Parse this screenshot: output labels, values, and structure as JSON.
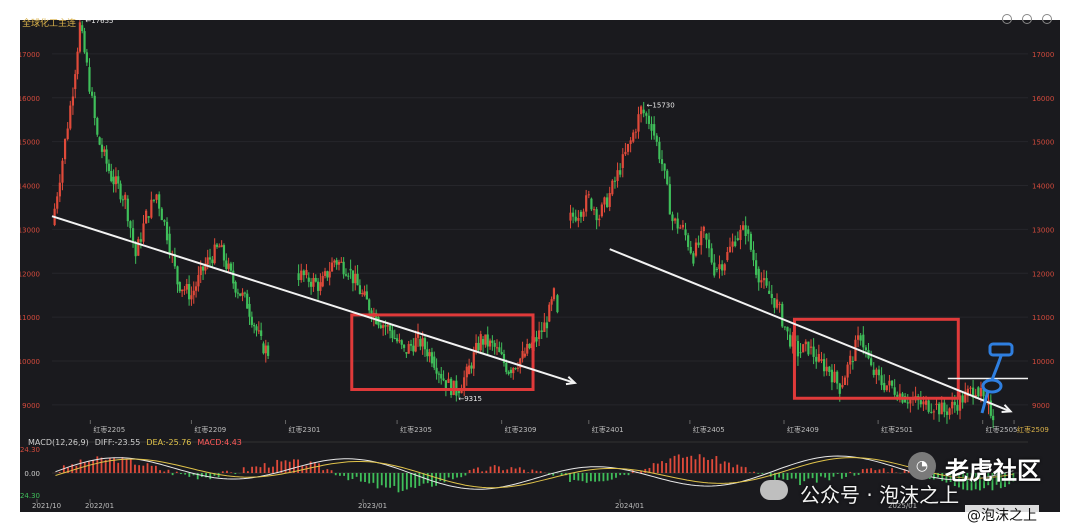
{
  "window": {
    "title": "全球化工主连"
  },
  "chart_data": {
    "type": "candlestick",
    "title": "全球化工主连",
    "y_ticks": [
      9000,
      10000,
      11000,
      12000,
      13000,
      14000,
      15000,
      16000,
      17000
    ],
    "ylim": [
      8700,
      17500
    ],
    "x_month_labels": [
      "红枣2205",
      "红枣2209",
      "红枣2301",
      "红枣2305",
      "红枣2309",
      "红枣2401",
      "红枣2405",
      "红枣2409",
      "红枣2501",
      "红枣2505",
      "红枣2509"
    ],
    "x_year_labels": [
      "2021/10",
      "2022/01",
      "2023/01",
      "2024/01",
      "2025/01"
    ],
    "annotations": [
      {
        "text": "←17655",
        "value": 17655
      },
      {
        "text": "←15730",
        "value": 15730
      },
      {
        "text": "←9315",
        "value": 9315
      }
    ],
    "segments": [
      {
        "name": "period-1",
        "points": [
          [
            0,
            13100
          ],
          [
            3,
            14600
          ],
          [
            6,
            16200
          ],
          [
            8,
            17655
          ],
          [
            10,
            16700
          ],
          [
            13,
            15100
          ],
          [
            17,
            14200
          ],
          [
            21,
            13700
          ],
          [
            24,
            12400
          ],
          [
            27,
            13300
          ],
          [
            30,
            13800
          ],
          [
            33,
            12900
          ],
          [
            36,
            11800
          ],
          [
            40,
            11500
          ],
          [
            44,
            12200
          ],
          [
            48,
            12600
          ],
          [
            52,
            11800
          ],
          [
            56,
            11300
          ],
          [
            60,
            10400
          ],
          [
            62,
            10200
          ]
        ]
      },
      {
        "name": "period-2",
        "points": [
          [
            70,
            12000
          ],
          [
            73,
            11900
          ],
          [
            77,
            11700
          ],
          [
            81,
            12300
          ],
          [
            85,
            12100
          ],
          [
            89,
            11500
          ],
          [
            93,
            11000
          ],
          [
            97,
            10700
          ],
          [
            101,
            10200
          ],
          [
            105,
            10500
          ],
          [
            109,
            10100
          ],
          [
            113,
            9500
          ],
          [
            116,
            9315
          ],
          [
            119,
            9700
          ],
          [
            123,
            10500
          ],
          [
            127,
            10300
          ],
          [
            131,
            9800
          ],
          [
            135,
            10100
          ],
          [
            139,
            10500
          ],
          [
            142,
            10900
          ],
          [
            144,
            11500
          ],
          [
            145,
            11000
          ]
        ]
      },
      {
        "name": "period-3",
        "points": [
          [
            148,
            13200
          ],
          [
            151,
            13400
          ],
          [
            154,
            13700
          ],
          [
            157,
            13300
          ],
          [
            160,
            13800
          ],
          [
            163,
            14400
          ],
          [
            166,
            15000
          ],
          [
            169,
            15730
          ],
          [
            172,
            15400
          ],
          [
            175,
            14500
          ],
          [
            178,
            13200
          ],
          [
            181,
            13000
          ],
          [
            184,
            12400
          ],
          [
            187,
            12900
          ],
          [
            190,
            12100
          ],
          [
            193,
            12300
          ],
          [
            196,
            12800
          ],
          [
            199,
            13000
          ],
          [
            202,
            12100
          ],
          [
            205,
            11600
          ],
          [
            208,
            11300
          ],
          [
            211,
            10600
          ],
          [
            214,
            10200
          ],
          [
            217,
            10300
          ],
          [
            220,
            10000
          ],
          [
            223,
            9800
          ],
          [
            226,
            9400
          ],
          [
            229,
            10000
          ],
          [
            232,
            10600
          ],
          [
            235,
            9800
          ],
          [
            238,
            9500
          ],
          [
            241,
            9400
          ],
          [
            244,
            9200
          ],
          [
            247,
            9100
          ],
          [
            250,
            9000
          ],
          [
            253,
            9000
          ],
          [
            256,
            8850
          ],
          [
            259,
            9000
          ],
          [
            262,
            9200
          ],
          [
            265,
            9400
          ],
          [
            268,
            9000
          ],
          [
            270,
            8800
          ]
        ]
      }
    ],
    "trendlines": [
      {
        "from": [
          0,
          13300
        ],
        "to": [
          150,
          9500
        ]
      },
      {
        "from": [
          160,
          12550
        ],
        "to": [
          275,
          8850
        ]
      }
    ],
    "resistance_line": {
      "value": 9600
    },
    "highlight_boxes": [
      {
        "x": [
          86,
          138
        ],
        "y": [
          9350,
          11050
        ]
      },
      {
        "x": [
          213,
          260
        ],
        "y": [
          9150,
          10950
        ]
      }
    ],
    "macd": {
      "label": "MACD(12,26,9)",
      "diff_label": "DIFF:-23.55",
      "dea_label": "DEA:-25.76",
      "macd_label": "MACD:4.43",
      "y_ticks": [
        "724.30",
        "0.00",
        "-724.30"
      ]
    }
  },
  "watermarks": {
    "main": "老虎社区",
    "account": "公众号 · 泡沫之上",
    "handle": "@泡沫之上"
  }
}
